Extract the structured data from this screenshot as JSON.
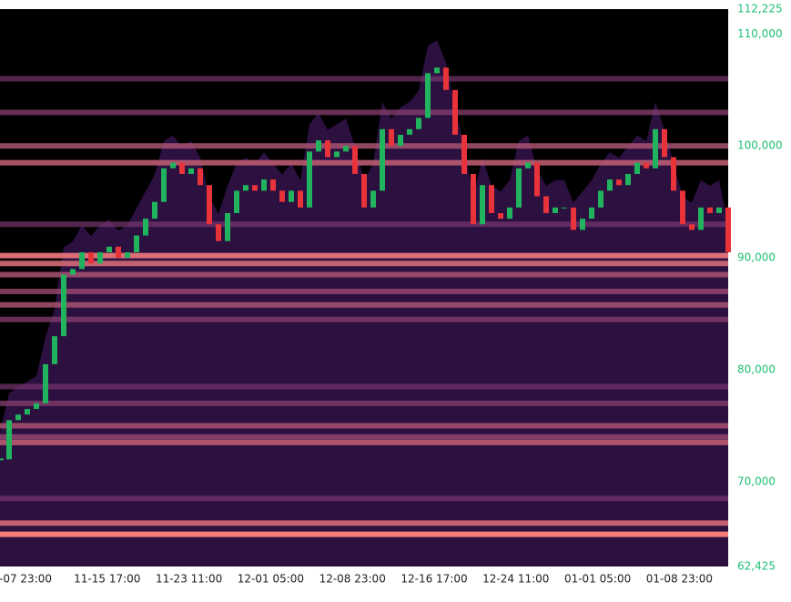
{
  "chart_data": {
    "type": "candlestick-heatmap",
    "x_tick_labels": [
      "-07 23:00",
      "11-15 17:00",
      "11-23 11:00",
      "12-01 05:00",
      "12-08 23:00",
      "12-16 17:00",
      "12-24 11:00",
      "01-01 05:00",
      "01-08 23:00"
    ],
    "close": [
      72000,
      75500,
      76000,
      76500,
      77000,
      80500,
      83000,
      88500,
      89000,
      90500,
      89500,
      90500,
      91000,
      90000,
      90500,
      92000,
      93500,
      95000,
      98000,
      98500,
      97500,
      98000,
      96500,
      93000,
      91500,
      94000,
      96000,
      96500,
      96000,
      97000,
      96000,
      95000,
      96000,
      94500,
      99500,
      100500,
      99000,
      99500,
      100000,
      97500,
      94500,
      96000,
      101500,
      100000,
      101000,
      101500,
      102500,
      106500,
      107000,
      105000,
      101000,
      97500,
      93000,
      96500,
      94000,
      93500,
      94500,
      98000,
      98500,
      95500,
      94000,
      94500,
      94500,
      92500,
      93500,
      94500,
      96000,
      97000,
      96500,
      97500,
      98500,
      98000,
      101500,
      99000,
      96000,
      93000,
      92500,
      94500,
      94000,
      94500,
      90500
    ],
    "up_color": "#22b35e",
    "down_color": "#e8333a",
    "heat_levels": [
      65300,
      66300,
      68500,
      73500,
      74000,
      75000,
      77000,
      78500,
      84500,
      85800,
      87000,
      88500,
      89500,
      90200,
      93000,
      98500,
      100000,
      103000,
      106000
    ],
    "heat_intensity": [
      1.0,
      0.8,
      0.3,
      0.7,
      0.5,
      0.6,
      0.4,
      0.3,
      0.4,
      0.6,
      0.5,
      0.6,
      0.8,
      0.9,
      0.3,
      0.7,
      0.6,
      0.4,
      0.3
    ],
    "ylim": [
      62425,
      112225
    ],
    "yticks": [
      {
        "value": 62425,
        "label": "62,425"
      },
      {
        "value": 70000,
        "label": "70,000"
      },
      {
        "value": 80000,
        "label": "80,000"
      },
      {
        "value": 90000,
        "label": "90,000"
      },
      {
        "value": 100000,
        "label": "100,000"
      },
      {
        "value": 110000,
        "label": "110,000"
      },
      {
        "value": 112225,
        "label": "112,225"
      }
    ]
  }
}
